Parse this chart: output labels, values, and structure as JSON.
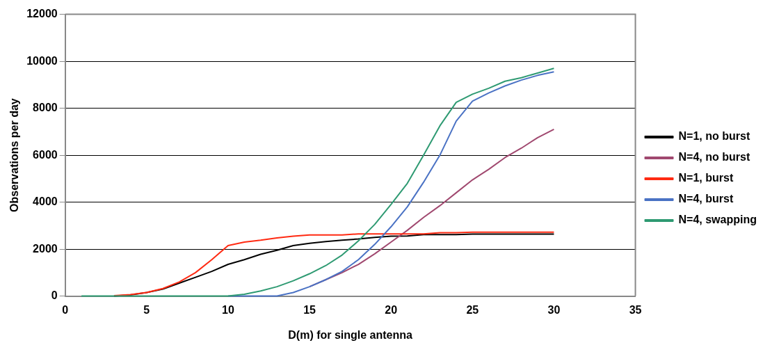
{
  "chart_data": {
    "type": "line",
    "xlabel": "D(m) for single antenna",
    "ylabel": "Observations per day",
    "x": [
      1,
      2,
      3,
      4,
      5,
      6,
      7,
      8,
      9,
      10,
      11,
      12,
      13,
      14,
      15,
      16,
      17,
      18,
      19,
      20,
      21,
      22,
      23,
      24,
      25,
      26,
      27,
      28,
      29,
      30
    ],
    "series": [
      {
        "name": "N=1, no burst",
        "color": "#000000",
        "values": [
          null,
          null,
          0,
          50,
          150,
          300,
          550,
          800,
          1050,
          1350,
          1550,
          1780,
          1950,
          2150,
          2250,
          2320,
          2380,
          2430,
          2500,
          2550,
          2560,
          2620,
          2620,
          2620,
          2640,
          2640,
          2640,
          2640,
          2640,
          2640
        ]
      },
      {
        "name": "N=4, no burst",
        "color": "#a0486f",
        "values": [
          null,
          null,
          null,
          null,
          null,
          null,
          null,
          null,
          null,
          null,
          null,
          null,
          null,
          null,
          400,
          700,
          1000,
          1350,
          1800,
          2300,
          2800,
          3350,
          3850,
          4400,
          4950,
          5400,
          5900,
          6300,
          6750,
          7100
        ]
      },
      {
        "name": "N=1, burst",
        "color": "#ff2a12",
        "values": [
          null,
          null,
          20,
          60,
          150,
          320,
          600,
          1000,
          1550,
          2150,
          2300,
          2380,
          2480,
          2550,
          2600,
          2600,
          2600,
          2650,
          2650,
          2650,
          2650,
          2650,
          2700,
          2700,
          2720,
          2720,
          2720,
          2720,
          2720,
          2720
        ]
      },
      {
        "name": "N=4, burst",
        "color": "#4a72c4",
        "values": [
          null,
          null,
          null,
          null,
          null,
          null,
          null,
          null,
          null,
          0,
          0,
          0,
          0,
          150,
          400,
          700,
          1050,
          1550,
          2200,
          2950,
          3800,
          4850,
          6000,
          7450,
          8300,
          8650,
          8950,
          9200,
          9400,
          9550
        ]
      },
      {
        "name": "N=4, swapping",
        "color": "#2e9a72",
        "values": [
          0,
          0,
          0,
          0,
          0,
          0,
          0,
          0,
          0,
          0,
          80,
          220,
          400,
          650,
          950,
          1300,
          1750,
          2350,
          3050,
          3900,
          4800,
          6000,
          7250,
          8250,
          8600,
          8850,
          9150,
          9300,
          9500,
          9700
        ]
      }
    ],
    "xlim": [
      0,
      35
    ],
    "xticks": [
      0,
      5,
      10,
      15,
      20,
      25,
      30,
      35
    ],
    "ylim": [
      0,
      12000
    ],
    "yticks": [
      0,
      2000,
      4000,
      6000,
      8000,
      10000,
      12000
    ],
    "grid": "y",
    "legend": "right",
    "marker": "none",
    "line_style": "solid"
  }
}
